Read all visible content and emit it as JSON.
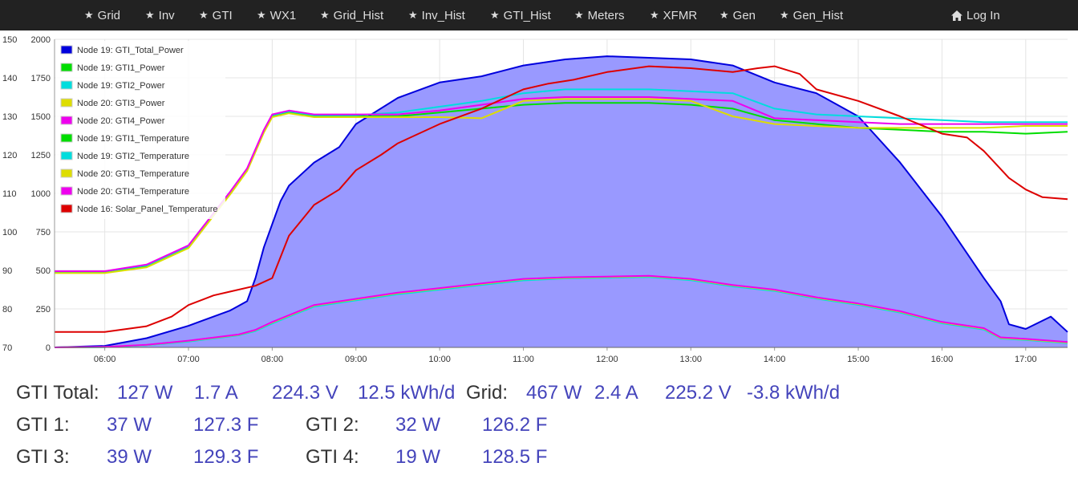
{
  "nav": {
    "items": [
      {
        "label": "Grid",
        "icon": "star-icon"
      },
      {
        "label": "Inv",
        "icon": "star-icon"
      },
      {
        "label": "GTI",
        "icon": "star-icon"
      },
      {
        "label": "WX1",
        "icon": "star-icon"
      },
      {
        "label": "Grid_Hist",
        "icon": "star-icon"
      },
      {
        "label": "Inv_Hist",
        "icon": "star-icon"
      },
      {
        "label": "GTI_Hist",
        "icon": "star-icon"
      },
      {
        "label": "Meters",
        "icon": "star-icon"
      },
      {
        "label": "XFMR",
        "icon": "star-icon"
      },
      {
        "label": "Gen",
        "icon": "star-icon"
      },
      {
        "label": "Gen_Hist",
        "icon": "star-icon"
      }
    ],
    "star_glyph": "★",
    "login": {
      "label": "Log In",
      "icon": "home-icon"
    }
  },
  "colors": {
    "navbar_bg": "#222222",
    "nav_text": "#dddddd",
    "value_text": "#4444bb",
    "label_text": "#333333",
    "area_fill": "#9999ff"
  },
  "chart_data": {
    "type": "line",
    "x_unit": "hour of day",
    "xlim": [
      5.4,
      17.5
    ],
    "x_ticks": [
      "06:00",
      "07:00",
      "08:00",
      "09:00",
      "10:00",
      "11:00",
      "12:00",
      "13:00",
      "14:00",
      "15:00",
      "16:00",
      "17:00"
    ],
    "y_left_ticks": [
      "70",
      "80",
      "90",
      "100",
      "110",
      "120",
      "130",
      "140",
      "150"
    ],
    "y_left_lim": [
      70,
      150
    ],
    "y_right_ticks": [
      "0",
      "250",
      "500",
      "750",
      "1000",
      "1250",
      "1500",
      "1750",
      "2000"
    ],
    "y_right_lim": [
      0,
      2000
    ],
    "grid": true,
    "legend_position": "top-left",
    "series": [
      {
        "name": "Node 19: GTI_Total_Power",
        "color": "#0000dd",
        "axis": "right",
        "style": "area",
        "x": [
          5.4,
          6.0,
          6.5,
          7.0,
          7.5,
          7.7,
          7.8,
          7.9,
          8.0,
          8.1,
          8.2,
          8.5,
          8.8,
          9.0,
          9.5,
          10.0,
          10.5,
          11.0,
          11.5,
          12.0,
          12.5,
          13.0,
          13.5,
          14.0,
          14.5,
          15.0,
          15.5,
          16.0,
          16.5,
          16.7,
          16.8,
          17.0,
          17.3,
          17.5
        ],
        "values": [
          0,
          10,
          60,
          140,
          240,
          300,
          450,
          650,
          800,
          950,
          1050,
          1200,
          1300,
          1450,
          1620,
          1720,
          1760,
          1830,
          1870,
          1890,
          1880,
          1870,
          1830,
          1720,
          1650,
          1500,
          1200,
          850,
          450,
          300,
          150,
          120,
          200,
          100
        ]
      },
      {
        "name": "Node 19: GTI1_Power",
        "color": "#00dd00",
        "axis": "right",
        "x": [
          5.4,
          6.0,
          6.5,
          7.0,
          7.3,
          7.6,
          7.8,
          8.0,
          8.5,
          9.0,
          9.5,
          10.0,
          10.5,
          11.0,
          11.5,
          12.0,
          12.5,
          13.0,
          13.5,
          14.0,
          14.5,
          15.0,
          15.5,
          16.0,
          16.5,
          16.7,
          17.0,
          17.5
        ],
        "values": [
          0,
          2,
          15,
          40,
          60,
          80,
          110,
          160,
          270,
          310,
          350,
          380,
          410,
          440,
          450,
          455,
          460,
          440,
          400,
          370,
          320,
          280,
          230,
          160,
          120,
          60,
          50,
          30
        ]
      },
      {
        "name": "Node 19: GTI2_Power",
        "color": "#00dddd",
        "axis": "right",
        "x": [
          5.4,
          6.0,
          6.5,
          7.0,
          7.3,
          7.6,
          7.8,
          8.0,
          8.5,
          9.0,
          9.5,
          10.0,
          10.5,
          11.0,
          11.5,
          12.0,
          12.5,
          13.0,
          13.5,
          14.0,
          14.5,
          15.0,
          15.5,
          16.0,
          16.5,
          16.7,
          17.0,
          17.5
        ],
        "values": [
          0,
          2,
          14,
          38,
          58,
          78,
          106,
          155,
          265,
          305,
          345,
          375,
          405,
          435,
          448,
          452,
          456,
          436,
          396,
          366,
          316,
          276,
          226,
          156,
          116,
          58,
          48,
          28
        ]
      },
      {
        "name": "Node 20: GTI3_Power",
        "color": "#dddd00",
        "axis": "right",
        "x": [
          5.4,
          6.0,
          6.5,
          7.0,
          7.3,
          7.6,
          7.8,
          8.0,
          8.5,
          9.0,
          9.5,
          10.0,
          10.5,
          11.0,
          11.5,
          12.0,
          12.5,
          13.0,
          13.5,
          14.0,
          14.5,
          15.0,
          15.5,
          16.0,
          16.5,
          16.7,
          17.0,
          17.5
        ],
        "values": [
          0,
          3,
          16,
          42,
          62,
          82,
          112,
          162,
          272,
          312,
          352,
          382,
          412,
          442,
          452,
          457,
          462,
          442,
          402,
          372,
          322,
          282,
          232,
          162,
          122,
          62,
          52,
          32
        ]
      },
      {
        "name": "Node 20: GTI4_Power",
        "color": "#ee00ee",
        "axis": "right",
        "x": [
          5.4,
          6.0,
          6.5,
          7.0,
          7.3,
          7.6,
          7.8,
          8.0,
          8.5,
          9.0,
          9.5,
          10.0,
          10.5,
          11.0,
          11.5,
          12.0,
          12.5,
          13.0,
          13.5,
          14.0,
          14.5,
          15.0,
          15.5,
          16.0,
          16.5,
          16.7,
          17.0,
          17.5
        ],
        "values": [
          0,
          3,
          17,
          44,
          64,
          84,
          114,
          165,
          275,
          315,
          355,
          385,
          415,
          445,
          455,
          460,
          465,
          445,
          405,
          375,
          325,
          285,
          235,
          165,
          125,
          65,
          55,
          35
        ]
      },
      {
        "name": "Node 19: GTI1_Temperature",
        "color": "#00dd00",
        "axis": "left",
        "x": [
          5.4,
          6.0,
          6.5,
          7.0,
          7.5,
          7.7,
          7.9,
          8.0,
          8.2,
          8.5,
          9.0,
          9.5,
          10.0,
          10.5,
          11.0,
          11.5,
          12.0,
          12.5,
          13.0,
          13.5,
          14.0,
          14.5,
          15.0,
          15.5,
          16.0,
          16.5,
          17.0,
          17.5
        ],
        "values": [
          89.5,
          89.5,
          91,
          96,
          110,
          116,
          126,
          130,
          131,
          130,
          130,
          130,
          131,
          132,
          133,
          133.5,
          133.5,
          133.5,
          133,
          132,
          129,
          128,
          127,
          126.5,
          126,
          126,
          125.5,
          126
        ]
      },
      {
        "name": "Node 19: GTI2_Temperature",
        "color": "#00dddd",
        "axis": "left",
        "x": [
          5.4,
          6.0,
          6.5,
          7.0,
          7.5,
          7.7,
          7.9,
          8.0,
          8.2,
          8.5,
          9.0,
          9.5,
          10.0,
          10.5,
          11.0,
          11.5,
          12.0,
          12.5,
          13.0,
          13.5,
          14.0,
          14.5,
          15.0,
          15.5,
          16.0,
          16.5,
          17.0,
          17.5
        ],
        "values": [
          89.7,
          89.7,
          91.3,
          96.3,
          110.3,
          116.3,
          126.3,
          130.3,
          131.3,
          130.3,
          130.3,
          131,
          132.5,
          134,
          136,
          137,
          137,
          137,
          136.5,
          136,
          132,
          130.5,
          130,
          129.5,
          129,
          128.5,
          128.5,
          128.5
        ]
      },
      {
        "name": "Node 20: GTI3_Temperature",
        "color": "#dddd00",
        "axis": "left",
        "x": [
          5.4,
          6.0,
          6.5,
          7.0,
          7.5,
          7.7,
          7.9,
          8.0,
          8.2,
          8.5,
          9.0,
          9.5,
          10.0,
          10.5,
          11.0,
          11.5,
          12.0,
          12.5,
          13.0,
          13.5,
          14.0,
          14.5,
          15.0,
          15.5,
          16.0,
          16.5,
          17.0,
          17.5
        ],
        "values": [
          89.3,
          89.3,
          90.8,
          95.8,
          109.8,
          115.8,
          125.8,
          129.8,
          130.8,
          129.8,
          129.8,
          129.8,
          129.8,
          129.5,
          134,
          134.5,
          134.5,
          134.5,
          134,
          130,
          128,
          127.5,
          127,
          127,
          127,
          127,
          127.5,
          127.5
        ]
      },
      {
        "name": "Node 20: GTI4_Temperature",
        "color": "#ee00ee",
        "axis": "left",
        "x": [
          5.4,
          6.0,
          6.5,
          7.0,
          7.5,
          7.7,
          7.9,
          8.0,
          8.2,
          8.5,
          9.0,
          9.5,
          10.0,
          10.5,
          11.0,
          11.5,
          12.0,
          12.5,
          13.0,
          13.5,
          14.0,
          14.5,
          15.0,
          15.5,
          16.0,
          16.5,
          17.0,
          17.5
        ],
        "values": [
          89.8,
          89.8,
          91.5,
          96.5,
          110.5,
          116.5,
          126.5,
          130.5,
          131.5,
          130.5,
          130.5,
          130.5,
          131.5,
          133,
          134.5,
          135,
          135,
          135,
          134.5,
          134,
          129.5,
          129,
          128.5,
          128,
          128,
          128,
          128,
          128
        ]
      },
      {
        "name": "Node 16: Solar_Panel_Temperature",
        "color": "#dd0000",
        "axis": "left",
        "x": [
          5.4,
          6.0,
          6.5,
          6.8,
          7.0,
          7.3,
          7.5,
          7.8,
          8.0,
          8.2,
          8.5,
          8.8,
          9.0,
          9.3,
          9.5,
          10.0,
          10.5,
          11.0,
          11.3,
          11.6,
          12.0,
          12.5,
          13.0,
          13.5,
          13.8,
          14.0,
          14.3,
          14.5,
          15.0,
          15.5,
          16.0,
          16.3,
          16.5,
          16.8,
          17.0,
          17.2,
          17.5
        ],
        "values": [
          74,
          74,
          75.5,
          78,
          81,
          83.5,
          84.5,
          86,
          88,
          99,
          107,
          111,
          116,
          120,
          123,
          128,
          132,
          137,
          138.5,
          139.5,
          141.5,
          143,
          142.5,
          141.5,
          142.5,
          143,
          141,
          137,
          134,
          130,
          125.5,
          124.5,
          121,
          114,
          111,
          109,
          108.5
        ]
      }
    ]
  },
  "stats": {
    "row1": {
      "gti_total_label": "GTI Total:",
      "gti_total_w": "127 W",
      "gti_total_a": "1.7 A",
      "gti_total_v": "224.3 V",
      "gti_total_kwh": "12.5 kWh/d",
      "grid_label": "Grid:",
      "grid_w": "467 W",
      "grid_a": "2.4 A",
      "grid_v": "225.2 V",
      "grid_kwh": "-3.8 kWh/d"
    },
    "row2": {
      "gti1_label": "GTI 1:",
      "gti1_w": "37 W",
      "gti1_f": "127.3 F",
      "gti2_label": "GTI 2:",
      "gti2_w": "32 W",
      "gti2_f": "126.2 F"
    },
    "row3": {
      "gti3_label": "GTI 3:",
      "gti3_w": "39 W",
      "gti3_f": "129.3 F",
      "gti4_label": "GTI 4:",
      "gti4_w": "19 W",
      "gti4_f": "128.5 F"
    }
  }
}
